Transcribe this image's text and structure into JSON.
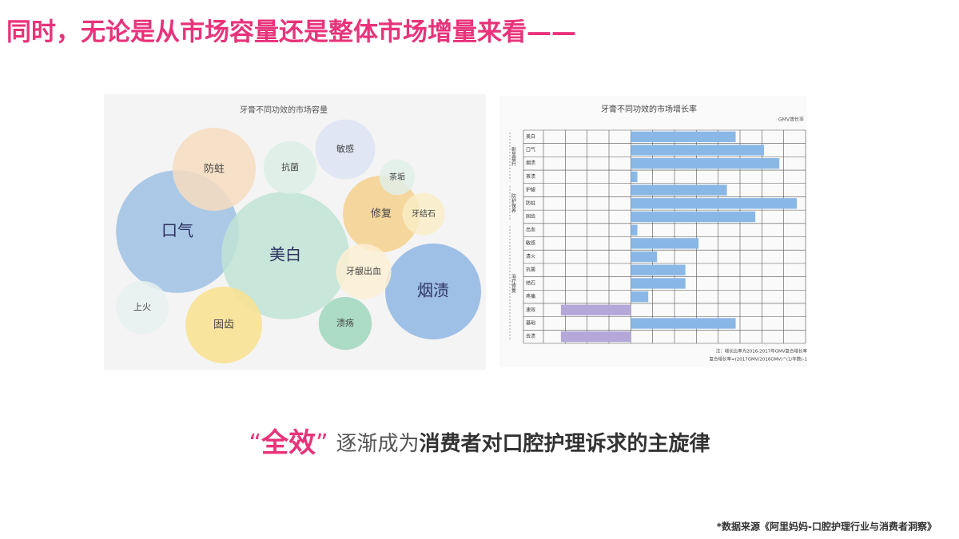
{
  "title": "同时，无论是从市场容量还是整体市场增量来看——",
  "tagline": {
    "quote_open": "“",
    "highlight": "全效",
    "quote_close": "”",
    "middle": "逐渐成为",
    "emphasis": "消费者对口腔护理诉求的主旋律"
  },
  "source": "*数据来源《阿里妈妈-口腔护理行业与消费者洞察》",
  "chart_data": [
    {
      "type": "bubble",
      "title": "牙膏不同功效的市场容量",
      "categories": [
        "口气",
        "美白",
        "烟渍",
        "防蛀",
        "修复",
        "抗菌",
        "敏感",
        "茶垢",
        "牙结石",
        "牙龈出血",
        "上火",
        "固齿",
        "溃疡"
      ],
      "values": [
        59,
        64,
        36,
        27,
        23,
        11,
        14,
        5,
        7,
        12,
        11,
        23,
        11
      ],
      "colors": [
        "#9dc0e3",
        "#bfe3d3",
        "#8fb6e3",
        "#f6dcc0",
        "#f5d08c",
        "#dcefe6",
        "#dde3f3",
        "#e0efe7",
        "#f9ecc6",
        "#fbefd4",
        "#e6f1ee",
        "#f9e08e",
        "#9fd6bd"
      ]
    },
    {
      "type": "hbar",
      "title": "牙膏不同功效的市场增长率",
      "x_label": "GMV增长率",
      "categories": [
        "美白",
        "口气",
        "烟渍",
        "茶渍",
        "护龈",
        "防蛀",
        "固齿",
        "出血",
        "敏感",
        "清火",
        "抗菌",
        "结石",
        "疼痛",
        "速效",
        "基础",
        "去渍"
      ],
      "values": [
        4.8,
        6.1,
        6.8,
        0.3,
        4.4,
        7.6,
        5.7,
        0.3,
        3.1,
        1.2,
        2.5,
        2.5,
        0.8,
        -3.2,
        4.8,
        -3.2
      ],
      "colors": [
        "#8ab8e6",
        "#8ab8e6",
        "#8ab8e6",
        "#8ab8e6",
        "#8ab8e6",
        "#8ab8e6",
        "#8ab8e6",
        "#8ab8e6",
        "#8ab8e6",
        "#8ab8e6",
        "#8ab8e6",
        "#8ab8e6",
        "#8ab8e6",
        "#b3a8d8",
        "#8ab8e6",
        "#b3a8d8"
      ],
      "xlim": [
        -4,
        8
      ],
      "grid": true,
      "groups": [
        {
          "label": "彰显提升",
          "categories": [
            "美白",
            "口气",
            "烟渍",
            "茶渍"
          ]
        },
        {
          "label": "防护保养",
          "categories": [
            "护龈",
            "防蛀",
            "固齿"
          ]
        },
        {
          "label": "治疗修复",
          "categories": [
            "出血",
            "敏感",
            "清火",
            "抗菌",
            "结石",
            "疼痛",
            "速效",
            "基础",
            "去渍"
          ]
        }
      ],
      "notes": [
        "注：增长比率为2016-2017年GMV复合增长率",
        "复合增长率=(2017GMV/2016GMV)^(1/年数)-1"
      ]
    }
  ]
}
